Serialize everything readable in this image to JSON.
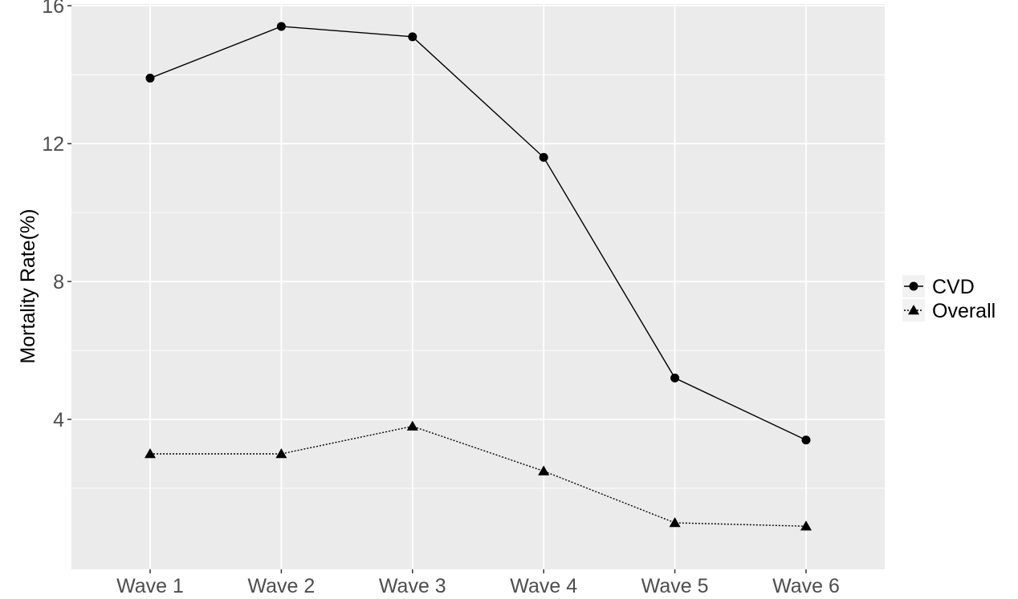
{
  "chart_data": {
    "type": "line",
    "categories": [
      "Wave 1",
      "Wave 2",
      "Wave 3",
      "Wave 4",
      "Wave 5",
      "Wave 6"
    ],
    "series": [
      {
        "name": "CVD",
        "values": [
          13.9,
          15.4,
          15.1,
          11.6,
          5.2,
          3.4
        ],
        "marker": "circle",
        "line_style": "solid"
      },
      {
        "name": "Overall",
        "values": [
          3.0,
          3.0,
          3.8,
          2.5,
          1.0,
          0.9
        ],
        "marker": "triangle",
        "line_style": "dotted"
      }
    ],
    "ylabel": "Mortality Rate(%)",
    "xlabel": "",
    "ylim": [
      -0.35,
      16.05
    ],
    "yticks": [
      4,
      8,
      12,
      16
    ],
    "grid": true,
    "legend_position": "right",
    "colors": {
      "panel": "#ebebeb",
      "grid": "#ffffff",
      "series": "#000000"
    }
  }
}
